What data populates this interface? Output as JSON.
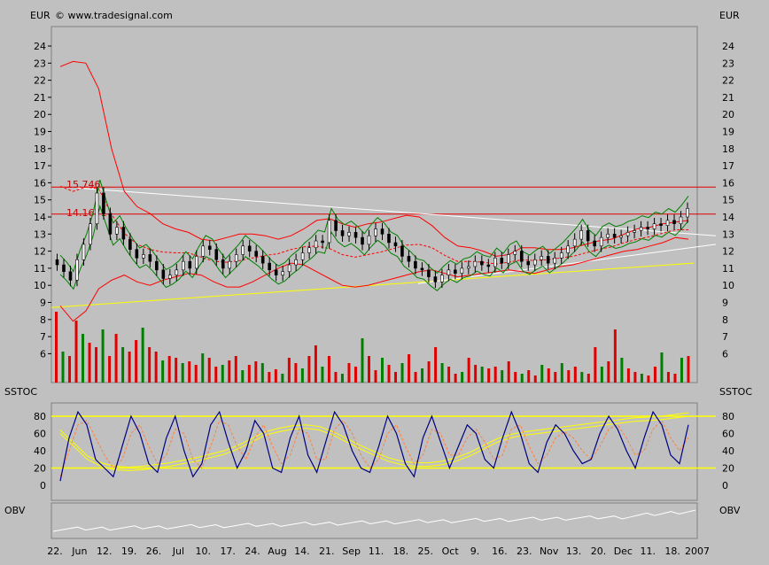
{
  "header": {
    "currency_left": "EUR",
    "currency_right": "EUR",
    "copyright": "© www.tradesignal.com"
  },
  "colors": {
    "background": "#c0c0c0",
    "resistance": "#e00000",
    "support_trend": "#ffff00",
    "trendline": "#ffffff",
    "bollinger": "#ff0000",
    "envelope": "#008000",
    "stoch_k": "#000080",
    "stoch_d": "#ff8040",
    "stoch_slow": "#ffff00",
    "obv": "#ffffff"
  },
  "chart_data": {
    "type": "candlestick",
    "price_axis": {
      "ylim": [
        7,
        25
      ],
      "ticks": [
        "24",
        "23",
        "22",
        "21",
        "20",
        "19",
        "18",
        "17",
        "16",
        "15",
        "14",
        "13",
        "12",
        "11",
        "10",
        "9",
        "8",
        "7",
        "6"
      ]
    },
    "x_ticks": [
      "22.",
      "Jun",
      "12.",
      "19.",
      "26.",
      "Jul",
      "10.",
      "17.",
      "24.",
      "Aug",
      "14.",
      "21.",
      "Sep",
      "11.",
      "18.",
      "25.",
      "Oct",
      "9.",
      "16.",
      "23.",
      "Nov",
      "13.",
      "20.",
      "Dec",
      "11.",
      "18.",
      "2007"
    ],
    "resistance_levels": [
      {
        "label": "15.746",
        "value": 15.746
      },
      {
        "label": "14.1671",
        "value": 14.1671
      }
    ],
    "price_close": [
      11.2,
      10.8,
      10.3,
      11.5,
      12.4,
      13.6,
      15.4,
      14.2,
      13.0,
      13.4,
      12.7,
      12.1,
      11.6,
      11.8,
      11.4,
      10.9,
      10.4,
      10.6,
      10.9,
      11.4,
      11.0,
      11.7,
      12.3,
      12.1,
      11.5,
      11.0,
      11.4,
      11.8,
      12.3,
      12.0,
      11.7,
      11.3,
      10.9,
      10.6,
      10.8,
      11.2,
      11.5,
      11.9,
      12.2,
      12.6,
      12.5,
      13.8,
      13.2,
      12.9,
      13.1,
      12.8,
      12.4,
      12.9,
      13.3,
      13.0,
      12.5,
      12.3,
      11.7,
      11.4,
      11.0,
      10.9,
      10.5,
      10.2,
      10.6,
      10.9,
      10.7,
      11.0,
      11.1,
      11.4,
      11.2,
      11.1,
      11.6,
      11.3,
      11.8,
      12.0,
      11.4,
      11.2,
      11.5,
      11.7,
      11.3,
      11.6,
      11.9,
      12.3,
      12.7,
      13.2,
      12.6,
      12.3,
      12.8,
      13.0,
      12.8,
      12.9,
      13.1,
      13.2,
      13.4,
      13.3,
      13.6,
      13.5,
      13.8,
      13.6,
      14.0,
      14.5
    ],
    "bollinger_upper": [
      22.8,
      23.1,
      23.0,
      21.5,
      18.0,
      15.5,
      14.6,
      14.2,
      13.6,
      13.3,
      13.1,
      12.7,
      12.6,
      12.8,
      13.0,
      13.0,
      12.9,
      12.7,
      12.9,
      13.3,
      13.8,
      13.9,
      13.6,
      13.4,
      13.6,
      13.7,
      13.9,
      14.1,
      14.0,
      13.5,
      12.8,
      12.3,
      12.2,
      12.0,
      11.7,
      11.8,
      12.2,
      12.2,
      12.1,
      12.1,
      12.2,
      12.4,
      12.6,
      12.7,
      13.0,
      13.3,
      13.4,
      13.6,
      13.7,
      13.8
    ],
    "bollinger_lower": [
      8.8,
      7.9,
      8.5,
      9.8,
      10.3,
      10.6,
      10.2,
      10.0,
      10.3,
      10.5,
      10.7,
      10.6,
      10.2,
      9.9,
      9.9,
      10.2,
      10.6,
      11.0,
      11.3,
      11.2,
      10.8,
      10.4,
      10.0,
      9.9,
      10.0,
      10.2,
      10.4,
      10.6,
      10.8,
      10.9,
      10.7,
      10.5,
      10.6,
      10.7,
      10.8,
      10.9,
      10.8,
      10.7,
      10.9,
      11.1,
      11.2,
      11.4,
      11.6,
      11.8,
      12.0,
      12.1,
      12.3,
      12.5,
      12.8,
      12.7
    ],
    "stoch_k": [
      5,
      55,
      85,
      70,
      30,
      20,
      10,
      45,
      80,
      60,
      25,
      15,
      55,
      80,
      40,
      10,
      25,
      70,
      85,
      50,
      20,
      40,
      75,
      60,
      20,
      15,
      55,
      80,
      35,
      15,
      50,
      85,
      70,
      40,
      20,
      15,
      45,
      80,
      60,
      25,
      10,
      55,
      80,
      50,
      20,
      45,
      70,
      60,
      30,
      20,
      55,
      85,
      60,
      25,
      15,
      50,
      70,
      60,
      40,
      25,
      30,
      60,
      80,
      65,
      40,
      20,
      55,
      85,
      70,
      35,
      25,
      70
    ],
    "stoch_d": [
      10,
      40,
      70,
      75,
      55,
      35,
      20,
      30,
      60,
      70,
      45,
      25,
      35,
      65,
      60,
      30,
      20,
      45,
      75,
      70,
      45,
      30,
      55,
      70,
      45,
      25,
      35,
      65,
      60,
      30,
      30,
      65,
      75,
      60,
      35,
      20,
      30,
      60,
      70,
      45,
      25,
      35,
      65,
      60,
      35,
      35,
      55,
      65,
      50,
      30,
      35,
      65,
      70,
      45,
      25,
      35,
      55,
      62,
      55,
      40,
      30,
      45,
      65,
      70,
      55,
      35,
      40,
      65,
      75,
      55,
      40,
      55
    ],
    "stoch_slow": [
      60,
      45,
      30,
      22,
      18,
      17,
      18,
      20,
      22,
      25,
      28,
      32,
      36,
      42,
      50,
      58,
      62,
      65,
      66,
      64,
      58,
      50,
      42,
      35,
      28,
      24,
      22,
      22,
      24,
      28,
      34,
      42,
      50,
      55,
      58,
      60,
      62,
      64,
      66,
      68,
      70,
      72,
      74,
      75,
      76,
      78,
      80
    ],
    "stoch_axis": {
      "ticks": [
        "80",
        "60",
        "40",
        "20",
        "0"
      ],
      "levels": [
        20,
        80
      ]
    },
    "obv_label": "OBV",
    "stoch_label": "SSTOC"
  }
}
